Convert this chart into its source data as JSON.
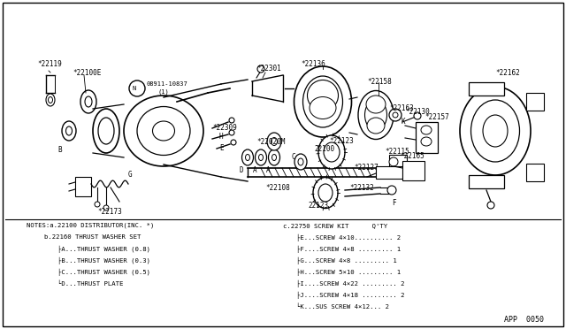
{
  "background_color": "#ffffff",
  "border_color": "#000000",
  "page_ref": "APP  0050",
  "text_color": "#000000",
  "line_color": "#000000",
  "notes": [
    "NOTES:a.22100 DISTRIBUTOR(INC. *)   c.22750 SCREW KIT     Q'TY",
    "      b.22160 THRUST WASHER SET      |-E...SCREW 4x10.......... 2",
    "        |-A...THRUST WASHER (0.8)    |-F...SCREW 4x8 ......... 1",
    "        |-B...THRUST WASHER (0.3)    |-G...SCREW 4x8 ......... 1",
    "        |-C...THRUST WASHER (0.5)    |-H...SCREW 5x10 ......... 1",
    "        L-D...THRUST PLATE           |-I...SCREW 4x22 ......... 2",
    "                                     |-J...SCREW 4x18 ......... 2",
    "                                     L-K...SUS SCREW 4x12... 2"
  ]
}
